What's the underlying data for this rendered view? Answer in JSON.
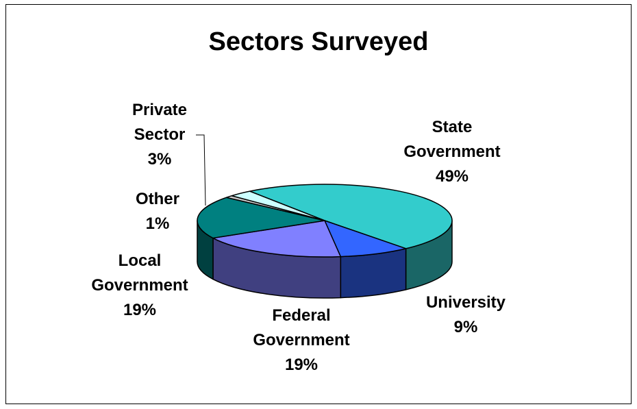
{
  "chart_data": {
    "type": "pie",
    "title": "Sectors Surveyed",
    "slices": [
      {
        "label_lines": [
          "State",
          "Government"
        ],
        "pct_label": "49%",
        "value": 49,
        "color": "#33cccc"
      },
      {
        "label_lines": [
          "University"
        ],
        "pct_label": "9%",
        "value": 9,
        "color": "#3366ff"
      },
      {
        "label_lines": [
          "Federal",
          "Government"
        ],
        "pct_label": "19%",
        "value": 19,
        "color": "#8080ff"
      },
      {
        "label_lines": [
          "Local",
          "Government"
        ],
        "pct_label": "19%",
        "value": 19,
        "color": "#008080"
      },
      {
        "label_lines": [
          "Other"
        ],
        "pct_label": "1%",
        "value": 1,
        "color": "#cccccc"
      },
      {
        "label_lines": [
          "Private",
          "Sector"
        ],
        "pct_label": "3%",
        "value": 3,
        "color": "#ccffff"
      }
    ]
  }
}
